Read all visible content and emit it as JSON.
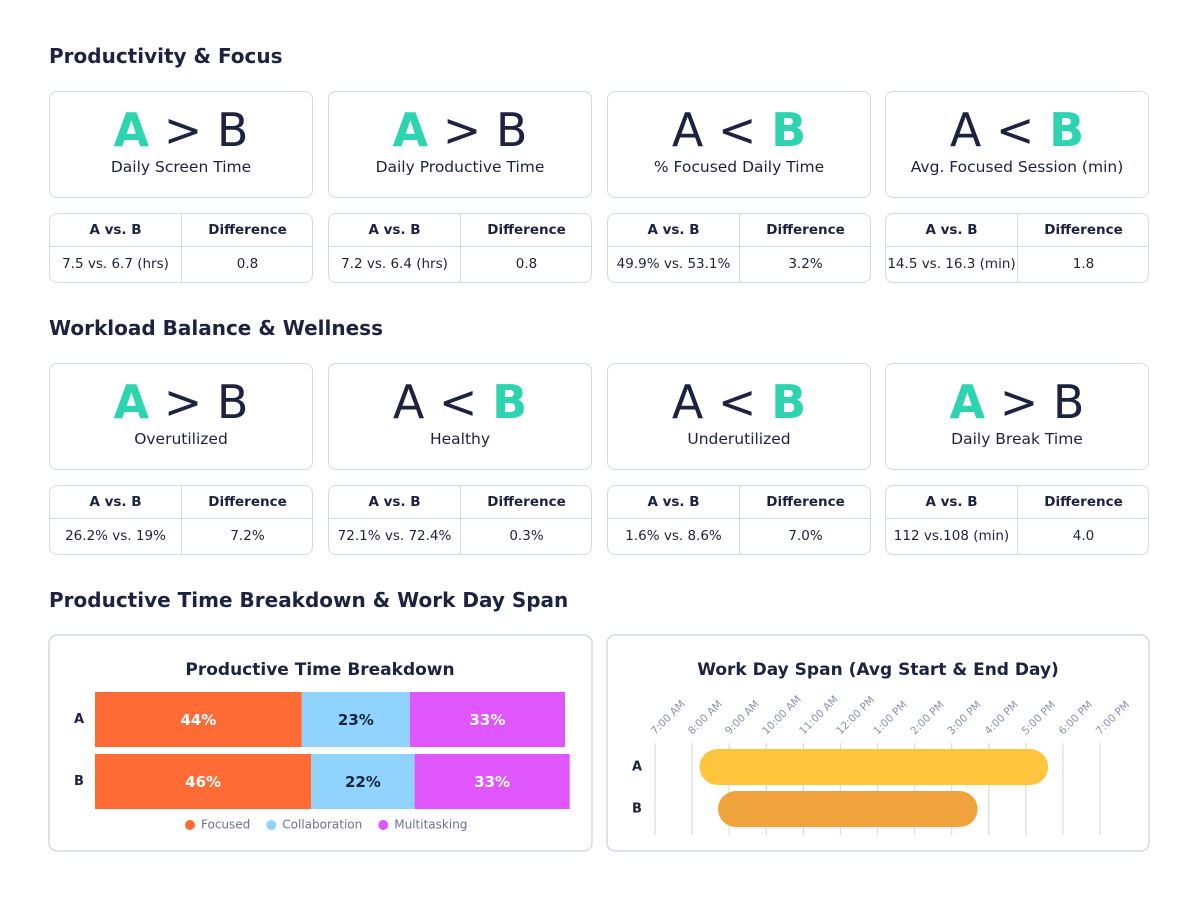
{
  "sections": [
    {
      "title": "Productivity  & Focus",
      "cards": [
        {
          "left": "A",
          "operator": ">",
          "right": "B",
          "highlight": "left",
          "label": "Daily Screen Time",
          "comparison": "7.5 vs. 6.7 (hrs)",
          "difference": "0.8"
        },
        {
          "left": "A",
          "operator": ">",
          "right": "B",
          "highlight": "left",
          "label": "Daily Productive Time",
          "comparison": "7.2 vs. 6.4 (hrs)",
          "difference": "0.8"
        },
        {
          "left": "A",
          "operator": "<",
          "right": "B",
          "highlight": "right",
          "label": "% Focused Daily Time",
          "comparison": "49.9% vs. 53.1%",
          "difference": "3.2%"
        },
        {
          "left": "A",
          "operator": "<",
          "right": "B",
          "highlight": "right",
          "label": "Avg. Focused Session (min)",
          "comparison": "14.5 vs. 16.3 (min)",
          "difference": "1.8"
        }
      ]
    },
    {
      "title": "Workload Balance & Wellness",
      "cards": [
        {
          "left": "A",
          "operator": ">",
          "right": "B",
          "highlight": "left",
          "label": "Overutilized",
          "comparison": "26.2% vs. 19%",
          "difference": "7.2%"
        },
        {
          "left": "A",
          "operator": "<",
          "right": "B",
          "highlight": "right",
          "label": "Healthy",
          "comparison": "72.1% vs. 72.4%",
          "difference": "0.3%"
        },
        {
          "left": "A",
          "operator": "<",
          "right": "B",
          "highlight": "right",
          "label": "Underutilized",
          "comparison": "1.6% vs. 8.6%",
          "difference": "7.0%"
        },
        {
          "left": "A",
          "operator": ">",
          "right": "B",
          "highlight": "left",
          "label": "Daily Break Time",
          "comparison": "112 vs.108 (min)",
          "difference": "4.0"
        }
      ]
    },
    {
      "title": "Productive Time Breakdown & Work Day Span"
    }
  ],
  "table_headers": [
    "A vs. B",
    "Difference"
  ],
  "highlight_color": "#2dd4b0",
  "chart_data": [
    {
      "type": "bar",
      "orientation": "horizontal",
      "stacked": true,
      "title": "Productive Time Breakdown",
      "categories": [
        "A",
        "B"
      ],
      "xlim": [
        0,
        100
      ],
      "legend": "bottom",
      "series": [
        {
          "name": "Focused",
          "color": "#ff6b35",
          "values": [
            44,
            46
          ],
          "value_labels": [
            "44%",
            "46%"
          ]
        },
        {
          "name": "Collaboration",
          "color": "#8fd3fe",
          "values": [
            23,
            22
          ],
          "value_labels": [
            "23%",
            "22%"
          ]
        },
        {
          "name": "Multitasking",
          "color": "#e056fd",
          "values": [
            33,
            33
          ],
          "value_labels": [
            "33%",
            "33%"
          ]
        }
      ]
    },
    {
      "type": "range",
      "title": "Work Day Span (Avg Start & End Day)",
      "categories": [
        "A",
        "B"
      ],
      "starts": [
        8.2,
        8.7
      ],
      "ends": [
        17.6,
        15.7
      ],
      "colors": [
        "#fec53d",
        "#f0a23c"
      ],
      "xlim": [
        7,
        19
      ],
      "grid": true,
      "xticks": [
        {
          "value": 7,
          "label": "7:00 AM"
        },
        {
          "value": 8,
          "label": "8:00 AM"
        },
        {
          "value": 9,
          "label": "9:00 AM"
        },
        {
          "value": 10,
          "label": "10:00 AM"
        },
        {
          "value": 11,
          "label": "11:00 AM"
        },
        {
          "value": 12,
          "label": "12:00 PM"
        },
        {
          "value": 13,
          "label": "1:00 PM"
        },
        {
          "value": 14,
          "label": "2:00 PM"
        },
        {
          "value": 15,
          "label": "3:00 PM"
        },
        {
          "value": 16,
          "label": "4:00 PM"
        },
        {
          "value": 17,
          "label": "5:00 PM"
        },
        {
          "value": 18,
          "label": "6:00 PM"
        },
        {
          "value": 19,
          "label": "7:00 PM"
        }
      ]
    }
  ]
}
